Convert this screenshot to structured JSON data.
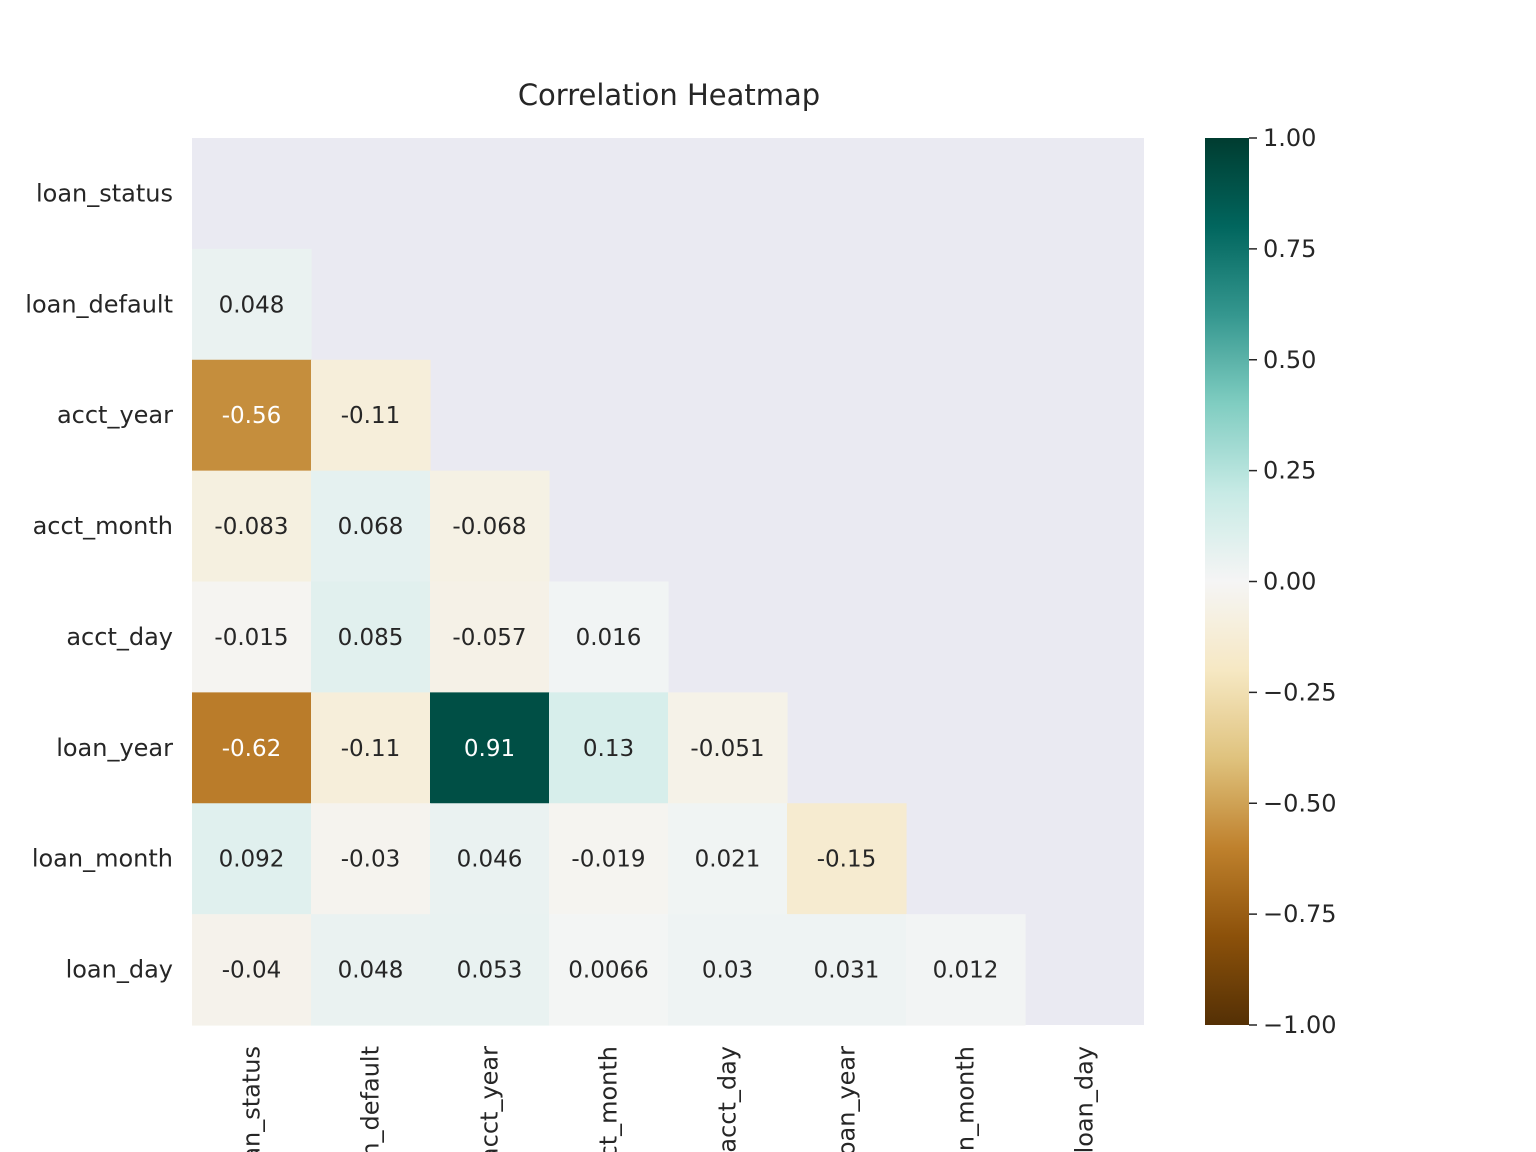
{
  "chart_data": {
    "type": "heatmap",
    "title": "Correlation Heatmap",
    "xlabel": "",
    "ylabel": "",
    "mask": "upper-triangle-including-diagonal",
    "variables": [
      "loan_status",
      "loan_default",
      "acct_year",
      "acct_month",
      "acct_day",
      "loan_year",
      "loan_month",
      "loan_day"
    ],
    "x_tick_labels": [
      "loan_status",
      "loan_default",
      "acct_year",
      "acct_month",
      "acct_day",
      "loan_year",
      "loan_month",
      "loan_day"
    ],
    "y_tick_labels": [
      "loan_status",
      "loan_default",
      "acct_year",
      "acct_month",
      "acct_day",
      "loan_year",
      "loan_month",
      "loan_day"
    ],
    "values": [
      [
        null,
        null,
        null,
        null,
        null,
        null,
        null,
        null
      ],
      [
        0.048,
        null,
        null,
        null,
        null,
        null,
        null,
        null
      ],
      [
        -0.56,
        -0.11,
        null,
        null,
        null,
        null,
        null,
        null
      ],
      [
        -0.083,
        0.068,
        -0.068,
        null,
        null,
        null,
        null,
        null
      ],
      [
        -0.015,
        0.085,
        -0.057,
        0.016,
        null,
        null,
        null,
        null
      ],
      [
        -0.62,
        -0.11,
        0.91,
        0.13,
        -0.051,
        null,
        null,
        null
      ],
      [
        0.092,
        -0.03,
        0.046,
        -0.019,
        0.021,
        -0.15,
        null,
        null
      ],
      [
        -0.04,
        0.048,
        0.053,
        0.0066,
        0.03,
        0.031,
        0.012,
        null
      ]
    ],
    "labels": [
      [
        null,
        null,
        null,
        null,
        null,
        null,
        null,
        null
      ],
      [
        "0.048",
        null,
        null,
        null,
        null,
        null,
        null,
        null
      ],
      [
        "-0.56",
        "-0.11",
        null,
        null,
        null,
        null,
        null,
        null
      ],
      [
        "-0.083",
        "0.068",
        "-0.068",
        null,
        null,
        null,
        null,
        null
      ],
      [
        "-0.015",
        "0.085",
        "-0.057",
        "0.016",
        null,
        null,
        null,
        null
      ],
      [
        "-0.62",
        "-0.11",
        "0.91",
        "0.13",
        "-0.051",
        null,
        null,
        null
      ],
      [
        "0.092",
        "-0.03",
        "0.046",
        "-0.019",
        "0.021",
        "-0.15",
        null,
        null
      ],
      [
        "-0.04",
        "0.048",
        "0.053",
        "0.0066",
        "0.03",
        "0.031",
        "0.012",
        null
      ]
    ],
    "colormap": "BrBG",
    "vmin": -1,
    "vmax": 1,
    "colorbar_ticks": [
      1.0,
      0.75,
      0.5,
      0.25,
      0.0,
      -0.25,
      -0.5,
      -0.75,
      -1.0
    ],
    "colorbar_tick_labels": [
      "1.00",
      "0.75",
      "0.50",
      "0.25",
      "0.00",
      "−0.25",
      "−0.50",
      "−0.75",
      "−1.00"
    ],
    "masked_color": "#eaeaf2"
  }
}
